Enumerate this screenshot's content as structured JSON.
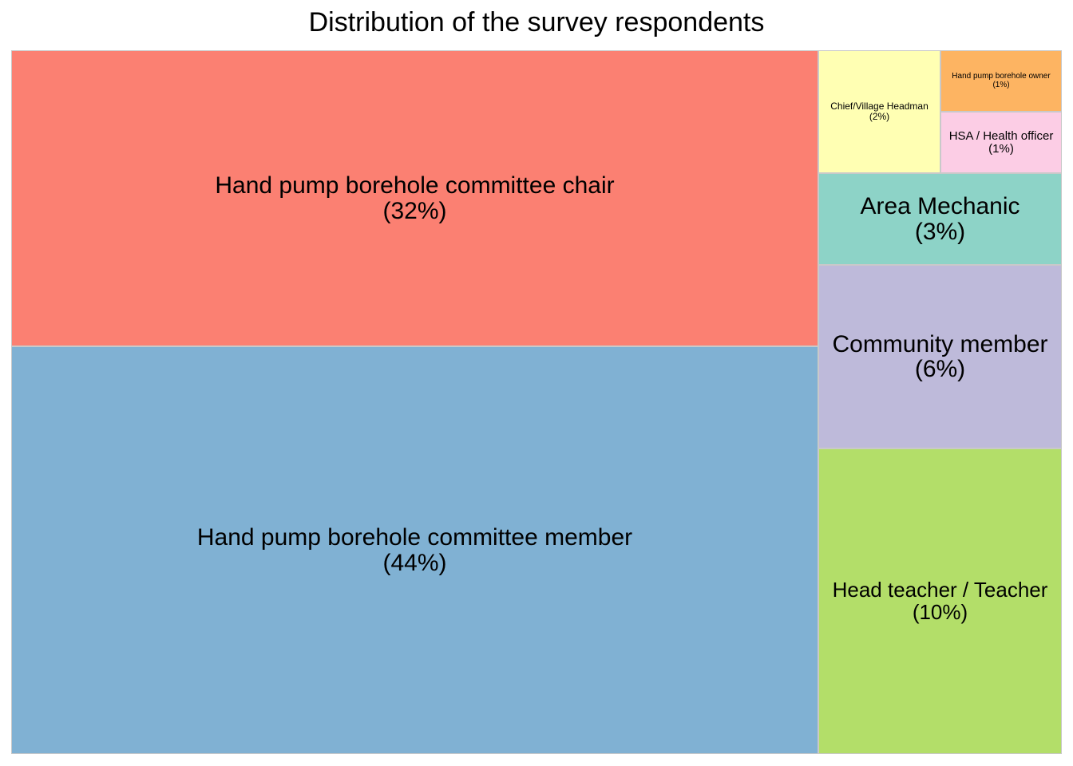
{
  "chart_data": {
    "type": "treemap",
    "title": "Distribution of the survey respondents",
    "items": [
      {
        "name": "Hand pump borehole committee member",
        "label": "(44%)",
        "value": 44,
        "color": "#80b1d3"
      },
      {
        "name": "Hand pump borehole committee chair",
        "label": "(32%)",
        "value": 32,
        "color": "#fb8072"
      },
      {
        "name": "Head teacher / Teacher",
        "label": "(10%)",
        "value": 10,
        "color": "#b3de69"
      },
      {
        "name": "Community member",
        "label": "(6%)",
        "value": 6,
        "color": "#bebada"
      },
      {
        "name": "Area Mechanic",
        "label": "(3%)",
        "value": 3,
        "color": "#8dd3c7"
      },
      {
        "name": "Chief/Village Headman",
        "label": "(2%)",
        "value": 2,
        "color": "#ffffb3"
      },
      {
        "name": "Hand pump borehole owner",
        "label": "(1%)",
        "value": 1,
        "color": "#fdb462"
      },
      {
        "name": "HSA / Health officer",
        "label": "(1%)",
        "value": 1,
        "color": "#fccde5"
      }
    ]
  }
}
